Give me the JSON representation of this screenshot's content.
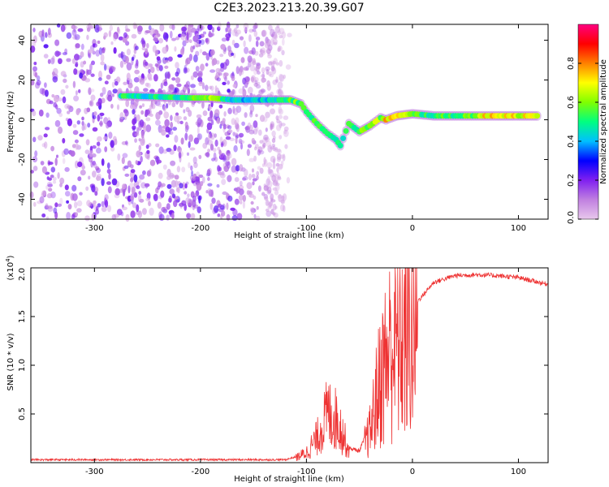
{
  "title": "C2E3.2023.213.20.39.G07",
  "chart_data": [
    {
      "type": "heatmap",
      "xlabel": "Height of straight line (km)",
      "ylabel": "Frequency (Hz)",
      "xlim": [
        -360,
        128
      ],
      "ylim": [
        -50,
        48
      ],
      "xticks": [
        -300,
        -200,
        -100,
        0,
        100
      ],
      "yticks": [
        -40,
        -20,
        0,
        20,
        40
      ],
      "colorbar": {
        "label": "Normalized spectral amplitude",
        "range": [
          0.0,
          1.0
        ],
        "ticks": [
          0.0,
          0.2,
          0.4,
          0.6,
          0.8
        ],
        "colors": [
          "#e8c8ec",
          "#c080e0",
          "#8020f0",
          "#0000ff",
          "#00c0ff",
          "#00ff80",
          "#80ff00",
          "#ffff00",
          "#ff8000",
          "#ff0000",
          "#ff0080"
        ]
      },
      "noise_region_x": [
        -360,
        -120
      ],
      "ridge": [
        {
          "x": -275,
          "y": 12,
          "amp": 0.5
        },
        {
          "x": -265,
          "y": 12,
          "amp": 0.45
        },
        {
          "x": -210,
          "y": 11,
          "amp": 0.5
        },
        {
          "x": -190,
          "y": 11,
          "amp": 0.6
        },
        {
          "x": -170,
          "y": 10,
          "amp": 0.45
        },
        {
          "x": -150,
          "y": 10,
          "amp": 0.4
        },
        {
          "x": -130,
          "y": 10,
          "amp": 0.45
        },
        {
          "x": -115,
          "y": 10,
          "amp": 0.55
        },
        {
          "x": -105,
          "y": 8,
          "amp": 0.55
        },
        {
          "x": -100,
          "y": 4,
          "amp": 0.45
        },
        {
          "x": -95,
          "y": 1,
          "amp": 0.55
        },
        {
          "x": -90,
          "y": -2,
          "amp": 0.6
        },
        {
          "x": -80,
          "y": -7,
          "amp": 0.55
        },
        {
          "x": -72,
          "y": -10,
          "amp": 0.5
        },
        {
          "x": -68,
          "y": -13,
          "amp": 0.45
        },
        {
          "x": -60,
          "y": -2,
          "amp": 0.5
        },
        {
          "x": -50,
          "y": -6,
          "amp": 0.55
        },
        {
          "x": -40,
          "y": -3,
          "amp": 0.6
        },
        {
          "x": -30,
          "y": 1,
          "amp": 0.6
        },
        {
          "x": -25,
          "y": 0,
          "amp": 0.75
        },
        {
          "x": -15,
          "y": 2,
          "amp": 0.7
        },
        {
          "x": 0,
          "y": 3,
          "amp": 0.55
        },
        {
          "x": 20,
          "y": 2,
          "amp": 0.5
        },
        {
          "x": 50,
          "y": 2,
          "amp": 0.55
        },
        {
          "x": 80,
          "y": 2,
          "amp": 0.75
        },
        {
          "x": 100,
          "y": 2,
          "amp": 0.7
        },
        {
          "x": 120,
          "y": 2,
          "amp": 0.6
        }
      ]
    },
    {
      "type": "line",
      "xlabel": "Height of straight line (km)",
      "ylabel": "SNR (10 * v/v)",
      "yscale_label": "(x10",
      "yscale_exp": "4",
      "yscale_close": ")",
      "xlim": [
        -360,
        128
      ],
      "ylim": [
        0,
        2.0
      ],
      "xticks": [
        -300,
        -200,
        -100,
        0,
        100
      ],
      "yticks": [
        0.5,
        1.0,
        1.5,
        2.0
      ],
      "ytick_labels": [
        "0.5",
        "1.0",
        "1.5",
        "2.0"
      ],
      "color": "#ee3333",
      "envelope": [
        {
          "x": -360,
          "y": 0.03
        },
        {
          "x": -200,
          "y": 0.03
        },
        {
          "x": -120,
          "y": 0.03
        },
        {
          "x": -110,
          "y": 0.06
        },
        {
          "x": -100,
          "y": 0.12
        },
        {
          "x": -90,
          "y": 0.3
        },
        {
          "x": -80,
          "y": 0.6
        },
        {
          "x": -70,
          "y": 0.5
        },
        {
          "x": -60,
          "y": 0.15
        },
        {
          "x": -50,
          "y": 0.12
        },
        {
          "x": -40,
          "y": 0.4
        },
        {
          "x": -30,
          "y": 1.1
        },
        {
          "x": -20,
          "y": 1.5
        },
        {
          "x": -10,
          "y": 1.55
        },
        {
          "x": 0,
          "y": 1.6
        },
        {
          "x": 10,
          "y": 1.72
        },
        {
          "x": 20,
          "y": 1.85
        },
        {
          "x": 40,
          "y": 1.92
        },
        {
          "x": 60,
          "y": 1.93
        },
        {
          "x": 80,
          "y": 1.92
        },
        {
          "x": 100,
          "y": 1.9
        },
        {
          "x": 128,
          "y": 1.83
        }
      ]
    }
  ]
}
